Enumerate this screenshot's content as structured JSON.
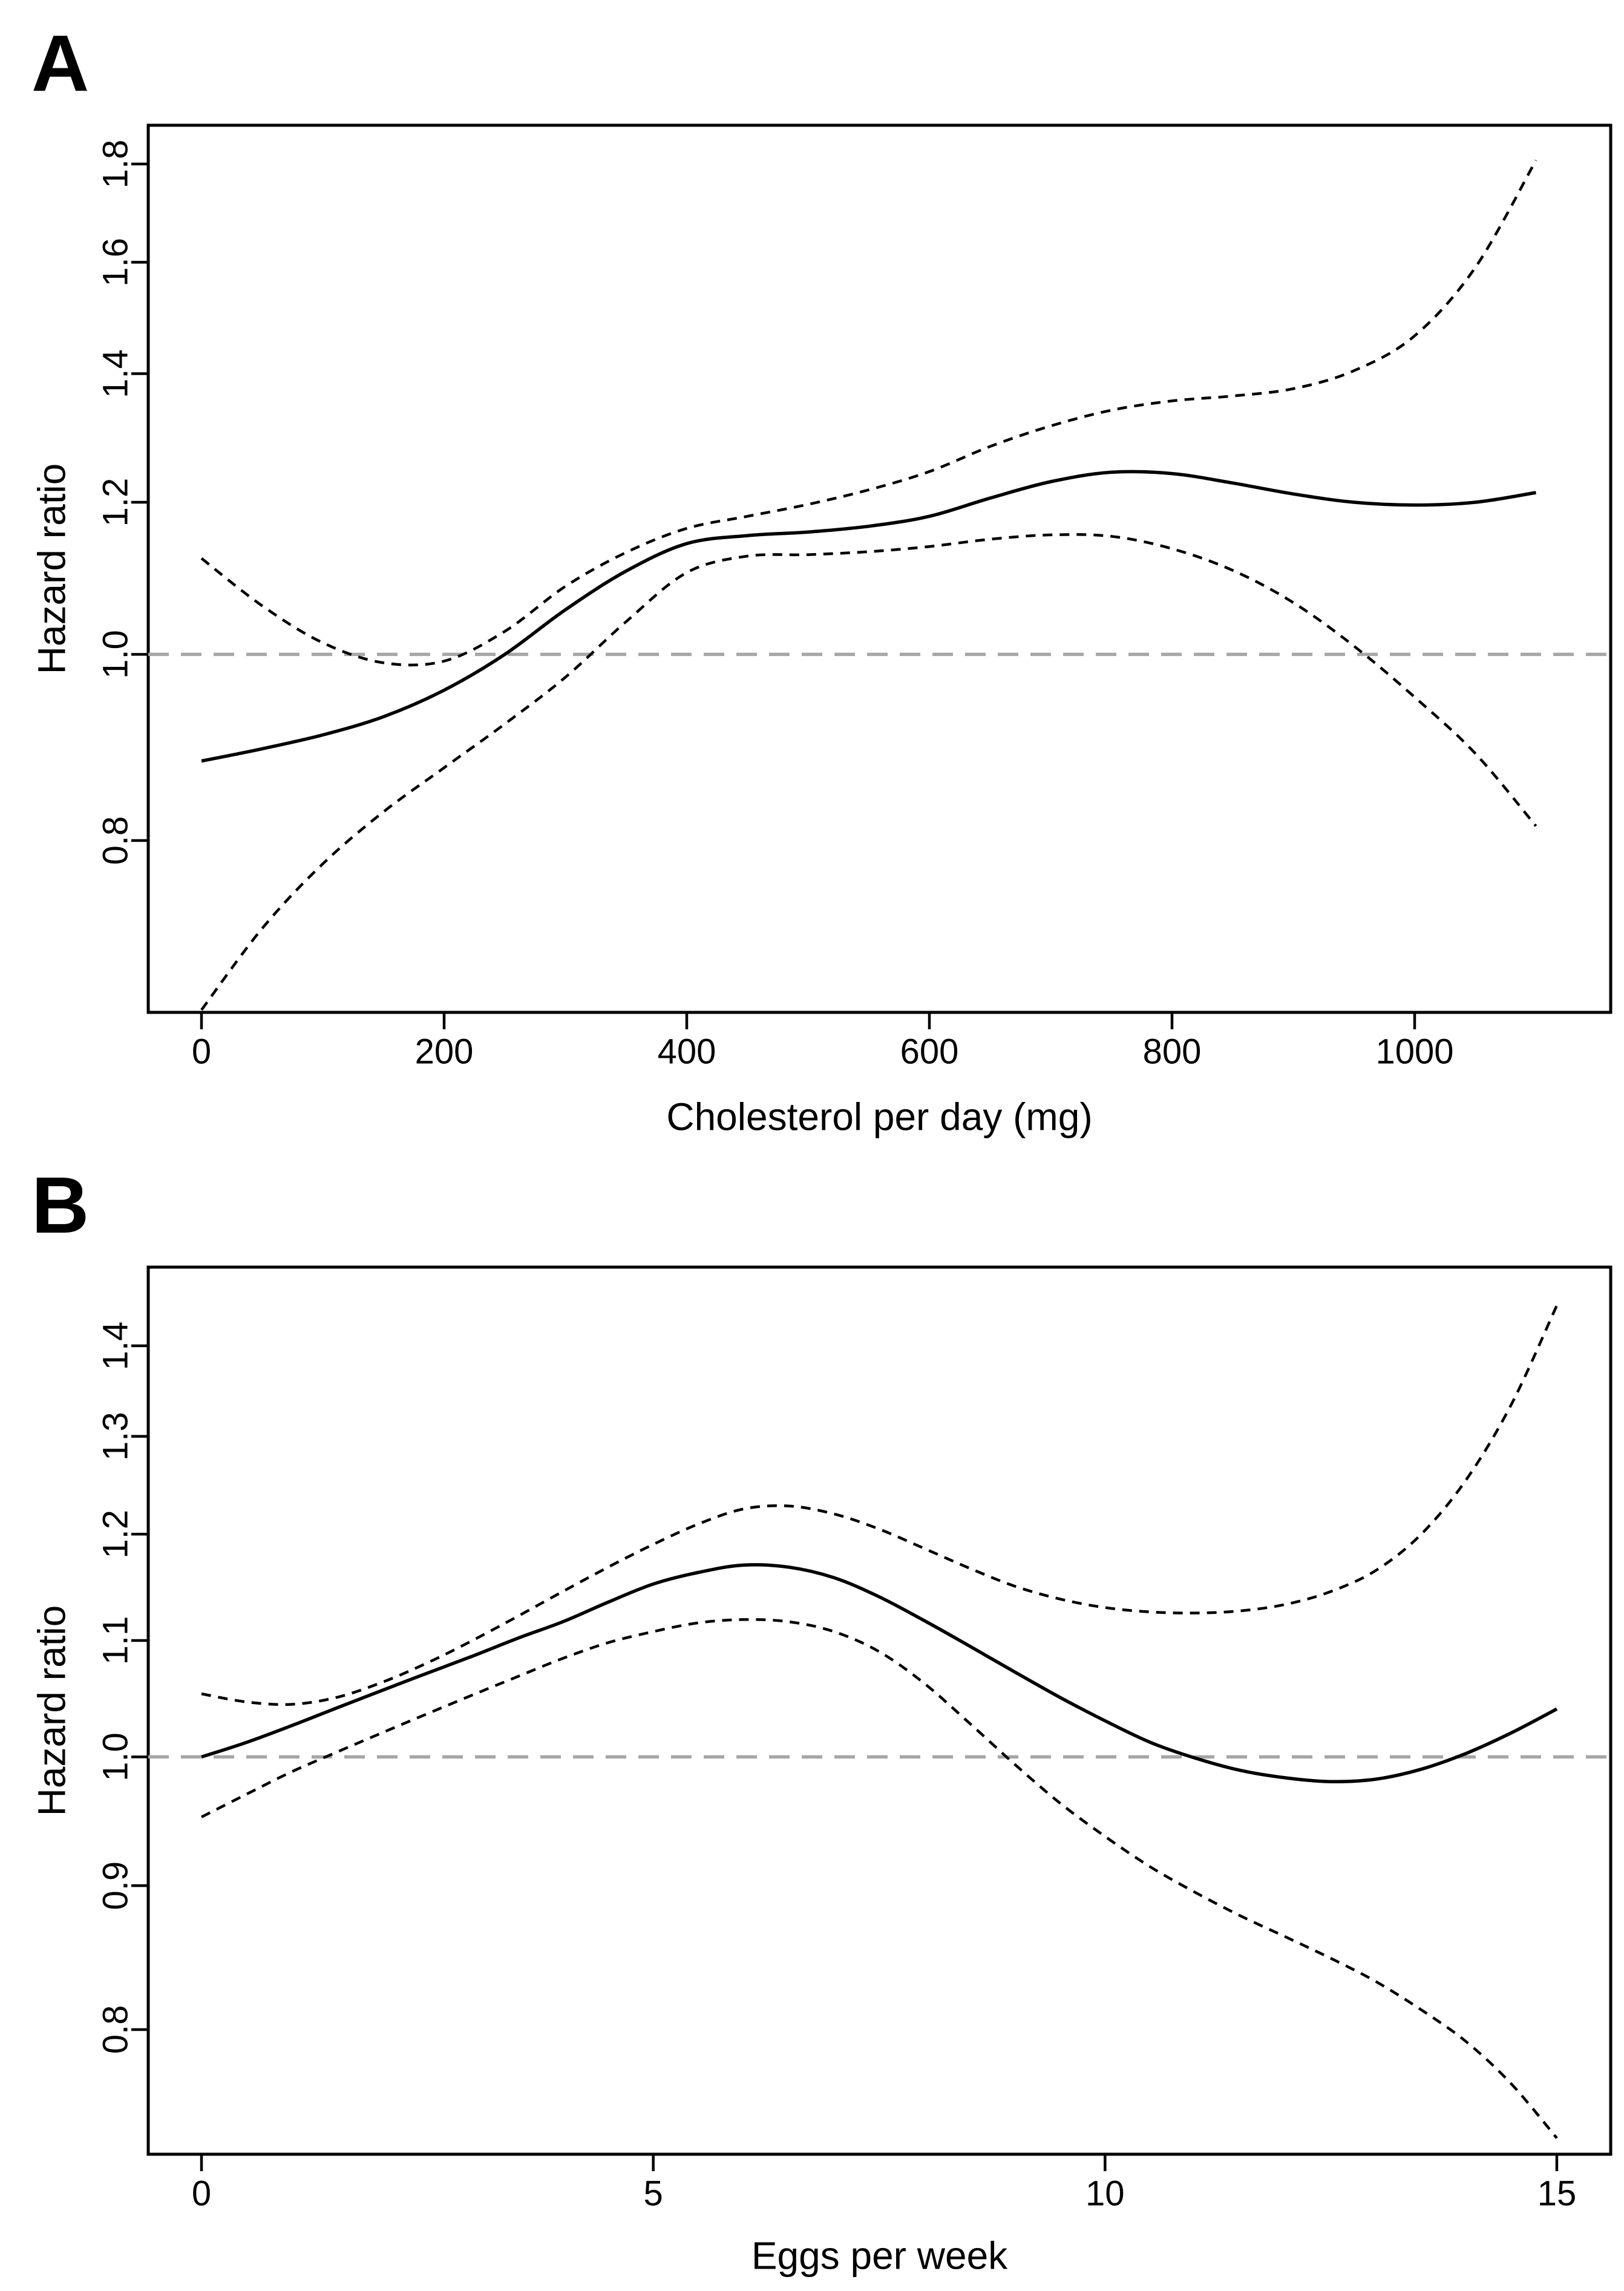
{
  "figure": {
    "background": "#ffffff",
    "curve_color": "#000000",
    "reference_line_color": "#a6a6a6"
  },
  "chart_data": [
    {
      "type": "line",
      "panel_label": "A",
      "title": "",
      "xlabel": "Cholesterol per day (mg)",
      "ylabel": "Hazard ratio",
      "y_scale": "log",
      "x_tick_values": [
        0,
        200,
        400,
        600,
        800,
        1000
      ],
      "x_tick_labels": [
        "0",
        "200",
        "400",
        "600",
        "800",
        "1000"
      ],
      "y_tick_values": [
        0.8,
        1.0,
        1.2,
        1.4,
        1.6,
        1.8
      ],
      "y_tick_labels": [
        "0.8",
        "1.0",
        "1.2",
        "1.4",
        "1.6",
        "1.8"
      ],
      "xlim": [
        -44,
        1162
      ],
      "ylim": [
        0.651,
        1.886
      ],
      "reference_line": {
        "y": 1.0,
        "style": "longdash",
        "color": "#a6a6a6"
      },
      "grid": false,
      "legend": "none",
      "x": [
        0,
        50,
        100,
        150,
        200,
        250,
        300,
        350,
        400,
        450,
        500,
        550,
        600,
        650,
        700,
        750,
        800,
        850,
        900,
        950,
        1000,
        1050,
        1100
      ],
      "series": [
        {
          "name": "estimate",
          "style": "solid",
          "values": [
            0.88,
            0.893,
            0.908,
            0.928,
            0.958,
            1.0,
            1.055,
            1.105,
            1.142,
            1.153,
            1.158,
            1.166,
            1.18,
            1.206,
            1.23,
            1.244,
            1.242,
            1.228,
            1.212,
            1.2,
            1.196,
            1.2,
            1.214
          ]
        },
        {
          "name": "upper_ci",
          "style": "dashed",
          "values": [
            1.122,
            1.06,
            1.014,
            0.99,
            0.992,
            1.028,
            1.085,
            1.13,
            1.163,
            1.18,
            1.197,
            1.218,
            1.245,
            1.283,
            1.315,
            1.34,
            1.355,
            1.363,
            1.375,
            1.405,
            1.465,
            1.59,
            1.808
          ]
        },
        {
          "name": "lower_ci",
          "style": "dashed",
          "values": [
            0.653,
            0.72,
            0.778,
            0.828,
            0.873,
            0.92,
            0.973,
            1.04,
            1.103,
            1.125,
            1.127,
            1.131,
            1.138,
            1.148,
            1.154,
            1.152,
            1.135,
            1.106,
            1.064,
            1.01,
            0.95,
            0.888,
            0.814
          ]
        }
      ]
    },
    {
      "type": "line",
      "panel_label": "B",
      "title": "",
      "xlabel": "Eggs per week",
      "ylabel": "Hazard ratio",
      "y_scale": "log",
      "x_tick_values": [
        0,
        5,
        10,
        15
      ],
      "x_tick_labels": [
        "0",
        "5",
        "10",
        "15"
      ],
      "y_tick_values": [
        0.8,
        0.9,
        1.0,
        1.1,
        1.2,
        1.3,
        1.4
      ],
      "y_tick_labels": [
        "0.8",
        "0.9",
        "1.0",
        "1.1",
        "1.2",
        "1.3",
        "1.4"
      ],
      "xlim": [
        -0.59,
        15.6
      ],
      "ylim": [
        0.722,
        1.493
      ],
      "reference_line": {
        "y": 1.0,
        "style": "longdash",
        "color": "#a6a6a6"
      },
      "grid": false,
      "legend": "none",
      "x": [
        0,
        0.5,
        1,
        1.5,
        2,
        2.5,
        3,
        3.5,
        4,
        4.5,
        5,
        5.5,
        6,
        6.5,
        7,
        7.5,
        8,
        8.5,
        9,
        9.5,
        10,
        10.5,
        11,
        11.5,
        12,
        12.5,
        13,
        13.5,
        14,
        14.5,
        15
      ],
      "series": [
        {
          "name": "estimate",
          "style": "solid",
          "values": [
            1.0,
            1.012,
            1.026,
            1.041,
            1.056,
            1.071,
            1.086,
            1.102,
            1.117,
            1.135,
            1.152,
            1.163,
            1.17,
            1.168,
            1.158,
            1.14,
            1.118,
            1.095,
            1.072,
            1.05,
            1.03,
            1.012,
            0.999,
            0.989,
            0.983,
            0.98,
            0.982,
            0.99,
            1.003,
            1.02,
            1.04
          ]
        },
        {
          "name": "upper_ci",
          "style": "dashed",
          "values": [
            1.053,
            1.046,
            1.044,
            1.05,
            1.063,
            1.08,
            1.1,
            1.122,
            1.145,
            1.168,
            1.19,
            1.21,
            1.225,
            1.228,
            1.22,
            1.205,
            1.186,
            1.167,
            1.15,
            1.138,
            1.13,
            1.126,
            1.125,
            1.127,
            1.133,
            1.145,
            1.165,
            1.2,
            1.255,
            1.335,
            1.447
          ]
        },
        {
          "name": "lower_ci",
          "style": "dashed",
          "values": [
            0.952,
            0.97,
            0.988,
            1.004,
            1.02,
            1.036,
            1.052,
            1.068,
            1.084,
            1.098,
            1.108,
            1.116,
            1.119,
            1.117,
            1.108,
            1.09,
            1.062,
            1.028,
            0.994,
            0.963,
            0.937,
            0.914,
            0.895,
            0.878,
            0.863,
            0.848,
            0.832,
            0.813,
            0.792,
            0.765,
            0.732
          ]
        }
      ]
    }
  ]
}
